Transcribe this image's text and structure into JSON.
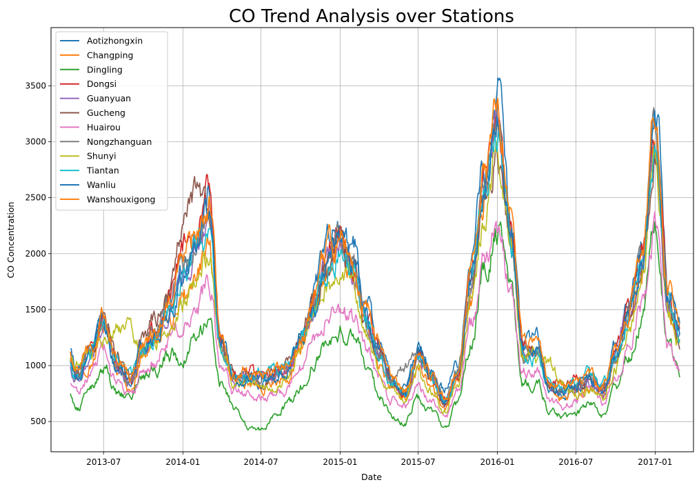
{
  "chart_data": {
    "type": "line",
    "title": "CO Trend Analysis over Stations",
    "xlabel": "Date",
    "ylabel": "CO Concentration",
    "xlim": [
      "2013-03-01",
      "2017-03-31"
    ],
    "ylim": [
      230,
      4020
    ],
    "x_ticks": [
      "2013-07-01",
      "2014-01-01",
      "2014-07-01",
      "2015-01-01",
      "2015-07-01",
      "2016-01-01",
      "2016-07-01",
      "2017-01-01"
    ],
    "x_tick_labels": [
      "2013-07",
      "2014-01",
      "2014-07",
      "2015-01",
      "2015-07",
      "2016-01",
      "2016-07",
      "2017-01"
    ],
    "y_ticks": [
      500,
      1000,
      1500,
      2000,
      2500,
      3000,
      3500
    ],
    "y_tick_labels": [
      "500",
      "1000",
      "1500",
      "2000",
      "2500",
      "3000",
      "3500"
    ],
    "grid": true,
    "legend_position": "top-left",
    "x": [
      "2013-03-01",
      "2013-04-01",
      "2013-05-01",
      "2013-06-01",
      "2013-07-01",
      "2013-08-01",
      "2013-09-01",
      "2013-10-01",
      "2013-11-01",
      "2013-12-01",
      "2014-01-01",
      "2014-02-01",
      "2014-03-01",
      "2014-04-01",
      "2014-05-01",
      "2014-06-01",
      "2014-07-01",
      "2014-08-01",
      "2014-09-01",
      "2014-10-01",
      "2014-11-01",
      "2014-12-01",
      "2015-01-01",
      "2015-02-01",
      "2015-03-01",
      "2015-04-01",
      "2015-05-01",
      "2015-06-01",
      "2015-07-01",
      "2015-08-01",
      "2015-09-01",
      "2015-10-01",
      "2015-11-01",
      "2015-12-01",
      "2016-01-01",
      "2016-02-01",
      "2016-03-01",
      "2016-04-01",
      "2016-05-01",
      "2016-06-01",
      "2016-07-01",
      "2016-08-01",
      "2016-09-01",
      "2016-10-01",
      "2016-11-01",
      "2016-12-01",
      "2017-01-01",
      "2017-02-01",
      "2017-02-28"
    ],
    "series": [
      {
        "name": "Aotizhongxin",
        "color": "#1f77b4",
        "values": [
          1650,
          1250,
          950,
          1150,
          1450,
          1000,
          850,
          1150,
          1300,
          1550,
          1800,
          2050,
          2550,
          1250,
          900,
          900,
          850,
          900,
          950,
          1250,
          1650,
          2150,
          2250,
          2050,
          1550,
          1200,
          900,
          800,
          1150,
          950,
          800,
          1000,
          1900,
          2750,
          3450,
          2350,
          1200,
          1250,
          850,
          750,
          800,
          850,
          750,
          1150,
          1550,
          2000,
          3300,
          1700,
          1400
        ]
      },
      {
        "name": "Changping",
        "color": "#ff7f0e",
        "values": [
          1600,
          1150,
          850,
          1050,
          1350,
          950,
          800,
          1100,
          1250,
          1450,
          1600,
          1800,
          2050,
          1150,
          850,
          850,
          800,
          850,
          900,
          1150,
          1450,
          1850,
          2000,
          1800,
          1350,
          1050,
          800,
          700,
          950,
          800,
          600,
          850,
          1650,
          2500,
          3100,
          2100,
          1100,
          1100,
          800,
          700,
          750,
          800,
          700,
          1050,
          1400,
          1800,
          3000,
          1500,
          1250
        ]
      },
      {
        "name": "Dingling",
        "color": "#2ca02c",
        "values": [
          1050,
          800,
          620,
          780,
          1000,
          750,
          700,
          900,
          1000,
          1100,
          1050,
          1250,
          1350,
          850,
          600,
          450,
          420,
          550,
          650,
          800,
          1000,
          1200,
          1300,
          1250,
          1000,
          750,
          550,
          500,
          700,
          600,
          450,
          650,
          1200,
          1850,
          2200,
          1650,
          850,
          850,
          600,
          550,
          550,
          650,
          550,
          800,
          1050,
          1400,
          2250,
          1150,
          950
        ]
      },
      {
        "name": "Dongsi",
        "color": "#d62728",
        "values": [
          1600,
          1200,
          900,
          1100,
          1400,
          1000,
          850,
          1150,
          1350,
          1600,
          2050,
          2200,
          2450,
          1200,
          900,
          950,
          900,
          950,
          1000,
          1250,
          1550,
          1950,
          2100,
          1900,
          1450,
          1150,
          850,
          750,
          1100,
          900,
          700,
          950,
          1800,
          2600,
          3200,
          2200,
          1150,
          1150,
          850,
          800,
          850,
          900,
          800,
          1100,
          1500,
          1950,
          3100,
          1600,
          1300
        ]
      },
      {
        "name": "Guanyuan",
        "color": "#9467bd",
        "values": [
          1550,
          1150,
          880,
          1080,
          1380,
          980,
          820,
          1120,
          1280,
          1500,
          1750,
          2000,
          2300,
          1150,
          870,
          900,
          860,
          900,
          950,
          1200,
          1500,
          1900,
          2050,
          1850,
          1400,
          1100,
          830,
          730,
          1050,
          870,
          680,
          920,
          1750,
          2500,
          3100,
          2150,
          1100,
          1120,
          820,
          760,
          800,
          860,
          760,
          1080,
          1450,
          1900,
          3000,
          1550,
          1250
        ]
      },
      {
        "name": "Gucheng",
        "color": "#8c564b",
        "values": [
          1600,
          1200,
          920,
          1120,
          1420,
          1050,
          900,
          1200,
          1450,
          1700,
          2250,
          2600,
          2400,
          1200,
          900,
          920,
          880,
          920,
          980,
          1250,
          1550,
          1900,
          2050,
          1850,
          1400,
          1150,
          880,
          780,
          1100,
          900,
          650,
          900,
          1700,
          2450,
          3000,
          2100,
          1100,
          1100,
          820,
          780,
          820,
          880,
          780,
          1100,
          1450,
          1850,
          2900,
          1500,
          1200
        ]
      },
      {
        "name": "Huairou",
        "color": "#e377c2",
        "values": [
          1250,
          950,
          750,
          900,
          1150,
          850,
          750,
          950,
          1050,
          1250,
          1350,
          1500,
          1750,
          1000,
          750,
          750,
          700,
          750,
          780,
          950,
          1200,
          1450,
          1500,
          1450,
          1150,
          900,
          700,
          650,
          800,
          700,
          550,
          750,
          1350,
          1900,
          2250,
          1700,
          950,
          950,
          700,
          650,
          680,
          750,
          650,
          900,
          1150,
          1550,
          2200,
          1150,
          1000
        ]
      },
      {
        "name": "Nongzhanguan",
        "color": "#7f7f7f",
        "values": [
          1550,
          1150,
          900,
          1100,
          1400,
          1000,
          850,
          1150,
          1300,
          1550,
          1850,
          2100,
          2350,
          1150,
          880,
          900,
          870,
          920,
          970,
          1220,
          1520,
          1920,
          2050,
          1850,
          1400,
          1100,
          850,
          1000,
          1100,
          900,
          700,
          950,
          1750,
          2550,
          3150,
          2150,
          1100,
          1150,
          830,
          770,
          810,
          860,
          770,
          1090,
          1470,
          1930,
          3100,
          1600,
          1300
        ]
      },
      {
        "name": "Shunyi",
        "color": "#bcbd22",
        "values": [
          1500,
          1100,
          1050,
          1100,
          1250,
          1400,
          1300,
          1100,
          1250,
          1400,
          1550,
          1800,
          1950,
          1100,
          850,
          850,
          820,
          850,
          900,
          1150,
          1450,
          1750,
          1900,
          1700,
          1300,
          1000,
          780,
          700,
          950,
          780,
          580,
          830,
          1600,
          2300,
          2850,
          2000,
          1050,
          1050,
          1000,
          850,
          750,
          800,
          700,
          1000,
          1350,
          1800,
          2900,
          1450,
          1200
        ]
      },
      {
        "name": "Tiantan",
        "color": "#17becf",
        "values": [
          1550,
          1150,
          880,
          1080,
          1380,
          1050,
          900,
          1150,
          1300,
          1500,
          1750,
          2000,
          2200,
          1150,
          870,
          900,
          920,
          950,
          1000,
          1220,
          1500,
          1900,
          2000,
          1800,
          1400,
          1100,
          830,
          730,
          1050,
          870,
          680,
          920,
          1750,
          2500,
          3100,
          2100,
          1100,
          1100,
          820,
          760,
          850,
          950,
          800,
          1080,
          1450,
          1900,
          3000,
          1550,
          1250
        ]
      },
      {
        "name": "Wanliu",
        "color": "#1f77b4",
        "values": [
          1600,
          1200,
          900,
          1100,
          1400,
          1000,
          850,
          1150,
          1300,
          1500,
          1750,
          2000,
          2400,
          1200,
          880,
          900,
          870,
          900,
          950,
          1220,
          1550,
          2000,
          2150,
          1950,
          1450,
          1150,
          850,
          750,
          1100,
          900,
          700,
          950,
          1800,
          2600,
          3250,
          2200,
          1150,
          1150,
          830,
          770,
          810,
          860,
          770,
          1090,
          1470,
          1950,
          3150,
          1600,
          1300
        ]
      },
      {
        "name": "Wanshouxigong",
        "color": "#ff7f0e",
        "values": [
          1650,
          1250,
          950,
          1150,
          1450,
          1050,
          880,
          1180,
          1350,
          1600,
          1950,
          2150,
          2450,
          1250,
          900,
          950,
          900,
          950,
          1000,
          1250,
          1600,
          2050,
          2200,
          2000,
          1500,
          1200,
          880,
          780,
          1120,
          920,
          720,
          980,
          1850,
          2700,
          3350,
          2300,
          1200,
          1200,
          870,
          800,
          850,
          900,
          800,
          1120,
          1500,
          2000,
          3250,
          1650,
          1350
        ]
      }
    ]
  }
}
